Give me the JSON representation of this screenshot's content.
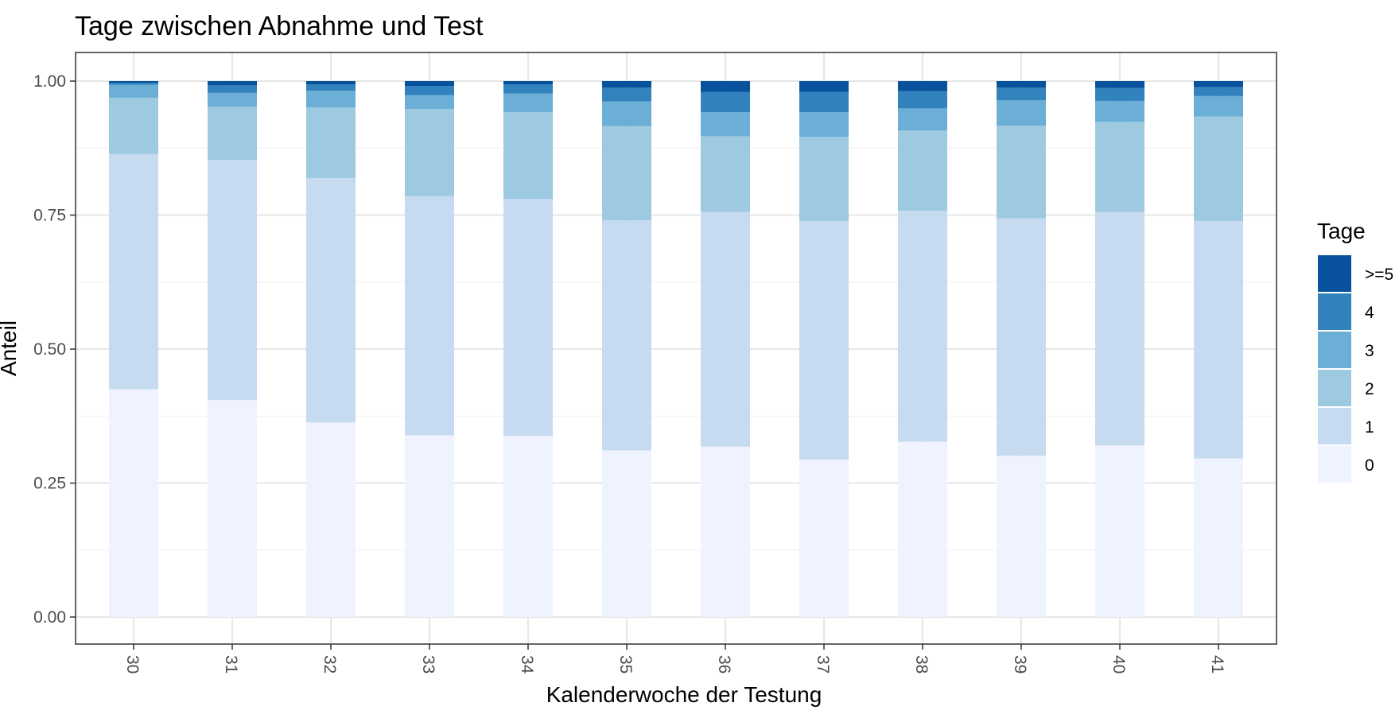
{
  "chart_data": {
    "type": "bar",
    "stacked": true,
    "title": "Tage zwischen Abnahme und Test",
    "xlabel": "Kalenderwoche der Testung",
    "ylabel": "Anteil",
    "ylim": [
      0,
      1.05
    ],
    "yticks": [
      "0.00",
      "0.25",
      "0.50",
      "0.75",
      "1.00"
    ],
    "categories": [
      "30",
      "31",
      "32",
      "33",
      "34",
      "35",
      "36",
      "37",
      "38",
      "39",
      "40",
      "41"
    ],
    "grid": true,
    "legend": {
      "title": "Tage",
      "position": "right"
    },
    "series": [
      {
        "name": "0",
        "color": "#eff3ff",
        "values": [
          0.425,
          0.405,
          0.363,
          0.339,
          0.338,
          0.311,
          0.318,
          0.294,
          0.327,
          0.301,
          0.32,
          0.296
        ]
      },
      {
        "name": "1",
        "color": "#c6dbef",
        "values": [
          0.439,
          0.448,
          0.456,
          0.446,
          0.442,
          0.429,
          0.438,
          0.445,
          0.431,
          0.443,
          0.436,
          0.443
        ]
      },
      {
        "name": "2",
        "color": "#9ecae1",
        "values": [
          0.105,
          0.099,
          0.132,
          0.163,
          0.162,
          0.176,
          0.141,
          0.157,
          0.15,
          0.173,
          0.168,
          0.195
        ]
      },
      {
        "name": "3",
        "color": "#6baed6",
        "values": [
          0.024,
          0.026,
          0.031,
          0.026,
          0.035,
          0.046,
          0.045,
          0.046,
          0.041,
          0.047,
          0.039,
          0.038
        ]
      },
      {
        "name": "4",
        "color": "#3182bd",
        "values": [
          0.004,
          0.014,
          0.012,
          0.017,
          0.017,
          0.026,
          0.038,
          0.038,
          0.032,
          0.024,
          0.024,
          0.017
        ]
      },
      {
        "name": ">=5",
        "color": "#08519c",
        "values": [
          0.003,
          0.008,
          0.006,
          0.009,
          0.006,
          0.012,
          0.02,
          0.02,
          0.019,
          0.012,
          0.013,
          0.011
        ]
      }
    ]
  }
}
